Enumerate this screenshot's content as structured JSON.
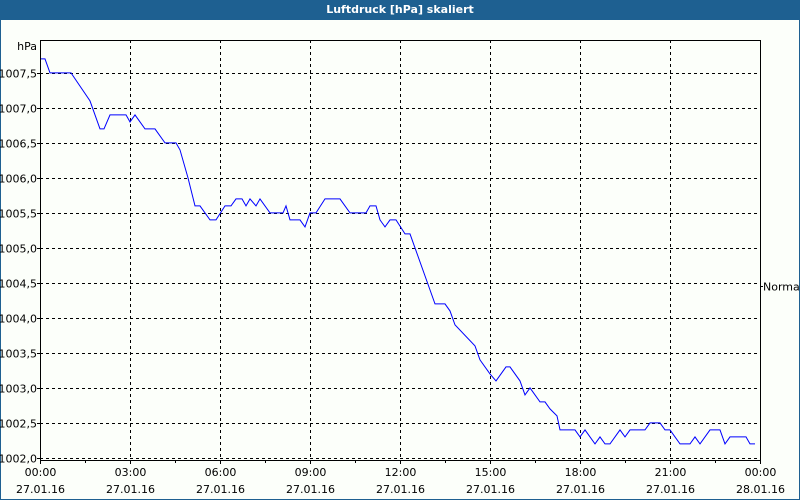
{
  "window": {
    "title": "Luftdruck [hPa] skaliert"
  },
  "colors": {
    "titlebar": "#1e6091",
    "line": "#0000ff",
    "background": "#fcfffa"
  },
  "chart_data": {
    "type": "line",
    "title": "Luftdruck [hPa] skaliert",
    "ylabel": "hPa",
    "ylim": [
      1001.97,
      1007.97
    ],
    "xlim": [
      "00:00",
      "24:00"
    ],
    "grid": true,
    "y_ticks": [
      "1002,0",
      "1002,5",
      "1003,0",
      "1003,5",
      "1004,0",
      "1004,5",
      "1005,0",
      "1005,5",
      "1006,0",
      "1006,5",
      "1007,0",
      "1007,5"
    ],
    "y_tick_values": [
      1002.0,
      1002.5,
      1003.0,
      1003.5,
      1004.0,
      1004.5,
      1005.0,
      1005.5,
      1006.0,
      1006.5,
      1007.0,
      1007.5
    ],
    "x_ticks": [
      {
        "time": "00:00",
        "date": "27.01.16"
      },
      {
        "time": "03:00",
        "date": "27.01.16"
      },
      {
        "time": "06:00",
        "date": "27.01.16"
      },
      {
        "time": "09:00",
        "date": "27.01.16"
      },
      {
        "time": "12:00",
        "date": "27.01.16"
      },
      {
        "time": "15:00",
        "date": "27.01.16"
      },
      {
        "time": "18:00",
        "date": "27.01.16"
      },
      {
        "time": "21:00",
        "date": "27.01.16"
      },
      {
        "time": "00:00",
        "date": "28.01.16"
      }
    ],
    "reference_line": {
      "label": "Normal",
      "value": 1004.45
    },
    "series": [
      {
        "x": [
          "00:00",
          "00:10",
          "00:20",
          "01:02",
          "01:40",
          "02:00",
          "02:08",
          "02:20",
          "02:52",
          "03:00",
          "03:10",
          "03:30",
          "03:50",
          "04:10",
          "04:32",
          "04:40",
          "04:56",
          "05:10",
          "05:20",
          "05:40",
          "05:52",
          "06:10",
          "06:22",
          "06:32",
          "06:44",
          "06:52",
          "07:00",
          "07:12",
          "07:20",
          "07:40",
          "08:06",
          "08:12",
          "08:20",
          "08:40",
          "08:50",
          "09:00",
          "09:12",
          "09:30",
          "10:00",
          "10:20",
          "10:52",
          "11:00",
          "11:12",
          "11:20",
          "11:30",
          "11:40",
          "11:52",
          "12:10",
          "12:20",
          "13:10",
          "13:30",
          "13:40",
          "13:50",
          "14:30",
          "14:40",
          "15:00",
          "15:12",
          "15:32",
          "15:40",
          "16:00",
          "16:10",
          "16:20",
          "16:40",
          "16:50",
          "17:00",
          "17:14",
          "17:20",
          "17:50",
          "18:00",
          "18:10",
          "18:30",
          "18:40",
          "18:50",
          "19:00",
          "19:20",
          "19:30",
          "19:40",
          "20:10",
          "20:20",
          "20:40",
          "20:50",
          "21:00",
          "21:20",
          "21:40",
          "21:50",
          "22:00",
          "22:20",
          "22:40",
          "22:50",
          "23:00",
          "23:32",
          "23:40",
          "23:50"
        ],
        "y": [
          1007.7,
          1007.7,
          1007.5,
          1007.5,
          1007.1,
          1006.7,
          1006.7,
          1006.9,
          1006.9,
          1006.8,
          1006.9,
          1006.7,
          1006.7,
          1006.5,
          1006.5,
          1006.4,
          1006.0,
          1005.6,
          1005.6,
          1005.4,
          1005.4,
          1005.6,
          1005.6,
          1005.7,
          1005.7,
          1005.6,
          1005.7,
          1005.6,
          1005.7,
          1005.5,
          1005.5,
          1005.6,
          1005.4,
          1005.4,
          1005.3,
          1005.5,
          1005.5,
          1005.7,
          1005.7,
          1005.5,
          1005.5,
          1005.6,
          1005.6,
          1005.4,
          1005.3,
          1005.4,
          1005.4,
          1005.2,
          1005.2,
          1004.2,
          1004.2,
          1004.1,
          1003.9,
          1003.6,
          1003.4,
          1003.2,
          1003.1,
          1003.3,
          1003.3,
          1003.1,
          1002.9,
          1003.0,
          1002.8,
          1002.8,
          1002.7,
          1002.6,
          1002.4,
          1002.4,
          1002.3,
          1002.4,
          1002.2,
          1002.3,
          1002.2,
          1002.2,
          1002.4,
          1002.3,
          1002.4,
          1002.4,
          1002.5,
          1002.5,
          1002.4,
          1002.4,
          1002.2,
          1002.2,
          1002.3,
          1002.2,
          1002.4,
          1002.4,
          1002.2,
          1002.3,
          1002.3,
          1002.2,
          1002.2
        ]
      }
    ]
  }
}
